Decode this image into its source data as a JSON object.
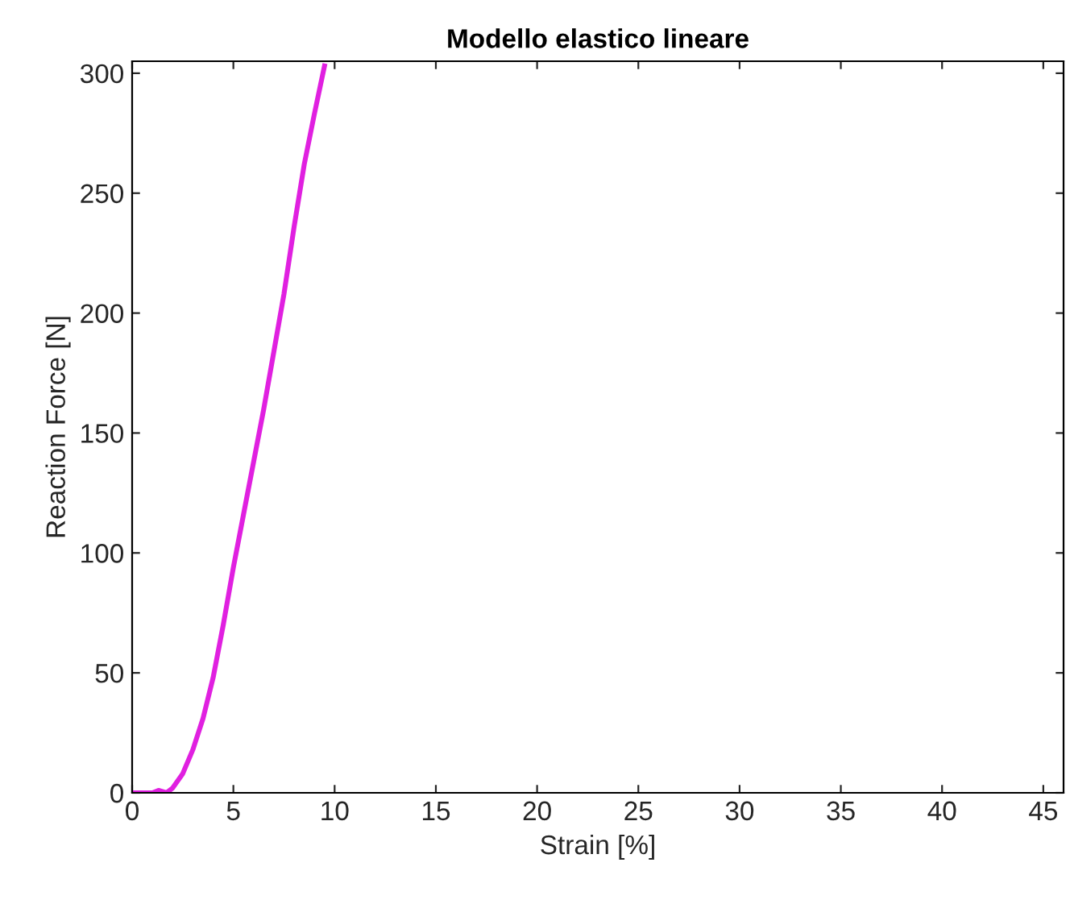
{
  "chart_data": {
    "type": "line",
    "title": "Modello elastico lineare",
    "xlabel": "Strain [%]",
    "ylabel": "Reaction Force [N]",
    "xlim": [
      0,
      46
    ],
    "ylim": [
      0,
      305
    ],
    "xticks": [
      0,
      5,
      10,
      15,
      20,
      25,
      30,
      35,
      40,
      45
    ],
    "yticks": [
      0,
      50,
      100,
      150,
      200,
      250,
      300
    ],
    "grid": false,
    "legend": false,
    "series": [
      {
        "color": "#e020e0",
        "x": [
          0,
          1,
          1.3,
          1.7,
          2,
          2.5,
          3,
          3.5,
          4,
          4.5,
          5,
          5.5,
          6,
          6.5,
          7,
          7.5,
          8,
          8.5,
          9,
          9.5
        ],
        "values": [
          0,
          0,
          1,
          0,
          2,
          8,
          18,
          31,
          48,
          70,
          94,
          116,
          138,
          160,
          184,
          208,
          236,
          262,
          283,
          303
        ]
      }
    ]
  }
}
